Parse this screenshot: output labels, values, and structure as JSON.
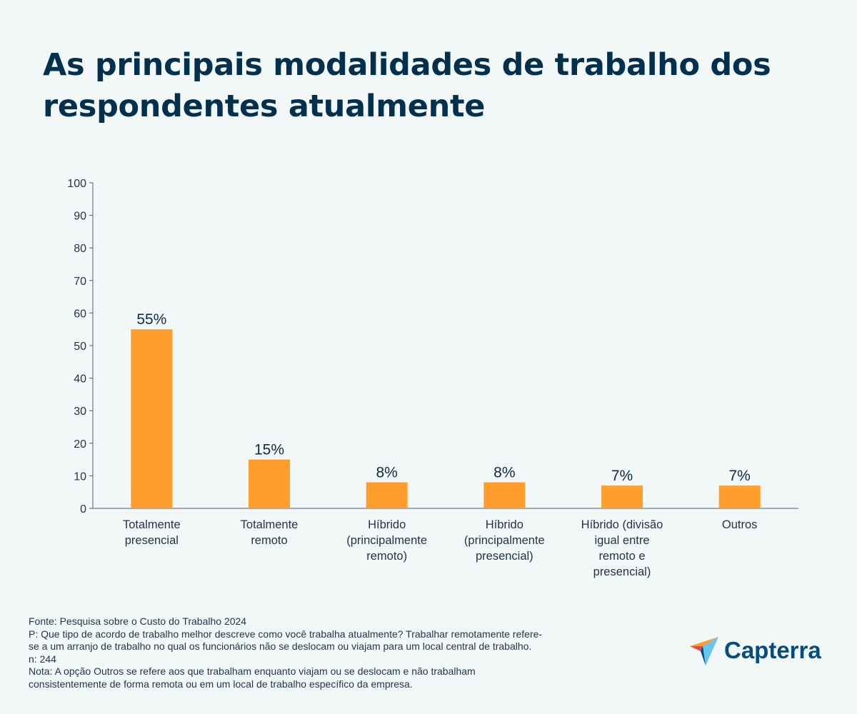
{
  "chart_data": {
    "type": "bar",
    "title": "As principais modalidades de trabalho dos respondentes atualmente",
    "categories": [
      [
        "Totalmente",
        "presencial"
      ],
      [
        "Totalmente",
        "remoto"
      ],
      [
        "Híbrido",
        "(principalmente",
        "remoto)"
      ],
      [
        "Híbrido",
        "(principalmente",
        "presencial)"
      ],
      [
        "Híbrido (divisão",
        "igual entre",
        "remoto e",
        "presencial)"
      ],
      [
        "Outros"
      ]
    ],
    "values": [
      55,
      15,
      8,
      8,
      7,
      7
    ],
    "data_labels": [
      "55%",
      "15%",
      "8%",
      "8%",
      "7%",
      "7%"
    ],
    "xlabel": "",
    "ylabel": "",
    "ylim": [
      0,
      100
    ],
    "yticks": [
      "0",
      "10",
      "20",
      "30",
      "40",
      "50",
      "60",
      "70",
      "80",
      "90",
      "100"
    ],
    "grid": false,
    "bar_color": "#ff9e2c"
  },
  "footer": {
    "lines": [
      "Fonte: Pesquisa sobre o Custo do Trabalho 2024",
      "P: Que tipo de acordo de trabalho melhor descreve como você trabalha atualmente? Trabalhar remotamente refere-",
      "se a um arranjo de trabalho no qual os funcionários não se deslocam ou viajam para um local central de trabalho.",
      "n: 244",
      "Nota: A opção Outros se refere aos que trabalham enquanto viajam ou se deslocam e não trabalham",
      "consistentemente de forma remota ou em um local de trabalho específico da empresa."
    ]
  },
  "logo": {
    "text": "Capterra",
    "icon": "capterra-arrow-logo"
  }
}
